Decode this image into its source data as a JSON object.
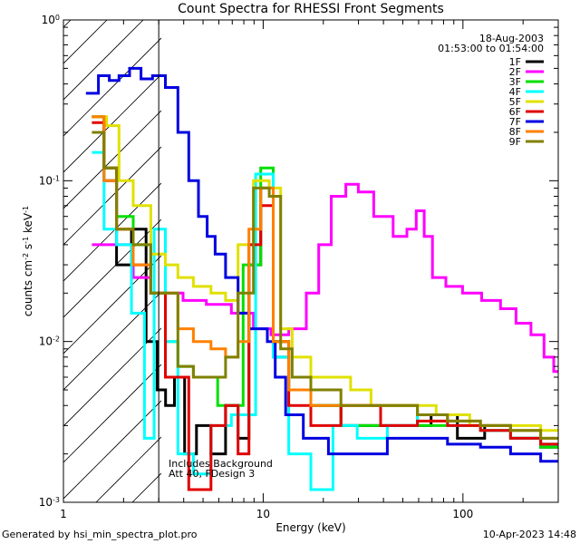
{
  "chart_data": {
    "type": "line",
    "title": "Count Spectra for RHESSI Front Segments",
    "xlabel": "Energy (keV)",
    "ylabel_parts": [
      "counts cm",
      "-2",
      " s",
      "-1",
      " keV",
      "-1"
    ],
    "xscale": "log",
    "yscale": "log",
    "xlim": [
      1,
      300
    ],
    "ylim": [
      0.001,
      1
    ],
    "x_ticks": [
      {
        "value": 1,
        "label": "1"
      },
      {
        "value": 10,
        "label": "10"
      },
      {
        "value": 100,
        "label": "100"
      }
    ],
    "y_ticks": [
      {
        "value": 0.001,
        "mant": "10",
        "exp": "-3"
      },
      {
        "value": 0.01,
        "mant": "10",
        "exp": "-2"
      },
      {
        "value": 0.1,
        "mant": "10",
        "exp": "-1"
      },
      {
        "value": 1,
        "mant": "10",
        "exp": "0"
      }
    ],
    "date": "18-Aug-2003",
    "time_range": "01:53:00 to 01:54:00",
    "legend_position": "top-right",
    "excluded_region_below_keV": 3,
    "notes": [
      "Includes Background",
      "Att 40, FDesign 3"
    ],
    "series": [
      {
        "name": "1F",
        "color": "#000000",
        "points": [
          [
            1.5,
            0.25
          ],
          [
            1.7,
            0.1
          ],
          [
            2.0,
            0.03
          ],
          [
            2.4,
            0.05
          ],
          [
            2.8,
            0.01
          ],
          [
            3.1,
            0.005
          ],
          [
            3.4,
            0.004
          ],
          [
            3.8,
            0.006
          ],
          [
            4.3,
            0.002
          ],
          [
            5.0,
            0.003
          ],
          [
            6.0,
            0.002
          ],
          [
            7.0,
            0.004
          ],
          [
            8.0,
            0.0025
          ],
          [
            9.0,
            0.03
          ],
          [
            10.5,
            0.09
          ],
          [
            12,
            0.008
          ],
          [
            15,
            0.005
          ],
          [
            20,
            0.004
          ],
          [
            30,
            0.003
          ],
          [
            45,
            0.003
          ],
          [
            60,
            0.003
          ],
          [
            80,
            0.0035
          ],
          [
            110,
            0.0025
          ],
          [
            150,
            0.003
          ],
          [
            200,
            0.0025
          ],
          [
            300,
            0.0022
          ]
        ]
      },
      {
        "name": "2F",
        "color": "#ff00ff",
        "points": [
          [
            1.5,
            0.04
          ],
          [
            2.0,
            0.04
          ],
          [
            2.5,
            0.025
          ],
          [
            3.0,
            0.02
          ],
          [
            3.5,
            0.02
          ],
          [
            4.5,
            0.018
          ],
          [
            6.0,
            0.017
          ],
          [
            8.0,
            0.015
          ],
          [
            10,
            0.012
          ],
          [
            12,
            0.011
          ],
          [
            15,
            0.012
          ],
          [
            18,
            0.02
          ],
          [
            20,
            0.04
          ],
          [
            24,
            0.08
          ],
          [
            28,
            0.095
          ],
          [
            32,
            0.085
          ],
          [
            40,
            0.06
          ],
          [
            50,
            0.045
          ],
          [
            55,
            0.05
          ],
          [
            62,
            0.065
          ],
          [
            66,
            0.045
          ],
          [
            75,
            0.025
          ],
          [
            90,
            0.022
          ],
          [
            110,
            0.02
          ],
          [
            140,
            0.018
          ],
          [
            170,
            0.016
          ],
          [
            200,
            0.013
          ],
          [
            240,
            0.011
          ],
          [
            270,
            0.008
          ],
          [
            300,
            0.0065
          ]
        ]
      },
      {
        "name": "3F",
        "color": "#00e000",
        "points": [
          [
            1.5,
            0.25
          ],
          [
            1.7,
            0.12
          ],
          [
            2.0,
            0.06
          ],
          [
            2.5,
            0.04
          ],
          [
            3.0,
            0.02
          ],
          [
            3.5,
            0.01
          ],
          [
            4.0,
            0.007
          ],
          [
            5.0,
            0.006
          ],
          [
            7.0,
            0.004
          ],
          [
            9.0,
            0.03
          ],
          [
            10.5,
            0.12
          ],
          [
            12,
            0.01
          ],
          [
            15,
            0.005
          ],
          [
            20,
            0.004
          ],
          [
            30,
            0.003
          ],
          [
            50,
            0.004
          ],
          [
            70,
            0.003
          ],
          [
            100,
            0.003
          ],
          [
            150,
            0.0028
          ],
          [
            200,
            0.0025
          ],
          [
            300,
            0.0022
          ]
        ]
      },
      {
        "name": "4F",
        "color": "#00ffff",
        "points": [
          [
            1.5,
            0.15
          ],
          [
            1.7,
            0.05
          ],
          [
            2.0,
            0.04
          ],
          [
            2.4,
            0.015
          ],
          [
            2.7,
            0.0025
          ],
          [
            3.0,
            0.05
          ],
          [
            3.5,
            0.01
          ],
          [
            4.0,
            0.002
          ],
          [
            5.0,
            0.0015
          ],
          [
            6.0,
            0.003
          ],
          [
            8.0,
            0.0035
          ],
          [
            10.5,
            0.11
          ],
          [
            12,
            0.008
          ],
          [
            15,
            0.002
          ],
          [
            20,
            0.0012
          ],
          [
            25,
            0.003
          ],
          [
            35,
            0.0025
          ],
          [
            50,
            0.003
          ],
          [
            70,
            0.0035
          ],
          [
            100,
            0.003
          ],
          [
            150,
            0.0028
          ],
          [
            200,
            0.0025
          ],
          [
            300,
            0.0023
          ]
        ]
      },
      {
        "name": "5F",
        "color": "#e0e000",
        "points": [
          [
            1.5,
            0.25
          ],
          [
            1.8,
            0.22
          ],
          [
            2.0,
            0.1
          ],
          [
            2.5,
            0.07
          ],
          [
            3.0,
            0.035
          ],
          [
            3.5,
            0.03
          ],
          [
            4.0,
            0.025
          ],
          [
            5.0,
            0.022
          ],
          [
            6.0,
            0.02
          ],
          [
            7.0,
            0.018
          ],
          [
            8.0,
            0.04
          ],
          [
            10,
            0.1
          ],
          [
            11.5,
            0.09
          ],
          [
            13,
            0.012
          ],
          [
            15,
            0.008
          ],
          [
            20,
            0.006
          ],
          [
            25,
            0.006
          ],
          [
            30,
            0.005
          ],
          [
            40,
            0.004
          ],
          [
            60,
            0.004
          ],
          [
            90,
            0.0035
          ],
          [
            130,
            0.003
          ],
          [
            200,
            0.003
          ],
          [
            300,
            0.0028
          ]
        ]
      },
      {
        "name": "6F",
        "color": "#e00000",
        "points": [
          [
            1.5,
            0.23
          ],
          [
            1.7,
            0.12
          ],
          [
            2.0,
            0.05
          ],
          [
            2.5,
            0.03
          ],
          [
            3.0,
            0.02
          ],
          [
            3.5,
            0.006
          ],
          [
            4.0,
            0.006
          ],
          [
            4.5,
            0.0012
          ],
          [
            5.0,
            0.0012
          ],
          [
            6.0,
            0.003
          ],
          [
            7.0,
            0.004
          ],
          [
            8.0,
            0.002
          ],
          [
            9.0,
            0.04
          ],
          [
            10.5,
            0.07
          ],
          [
            12,
            0.01
          ],
          [
            15,
            0.004
          ],
          [
            20,
            0.003
          ],
          [
            30,
            0.004
          ],
          [
            50,
            0.003
          ],
          [
            70,
            0.0032
          ],
          [
            100,
            0.003
          ],
          [
            150,
            0.0028
          ],
          [
            200,
            0.0025
          ],
          [
            300,
            0.0023
          ]
        ]
      },
      {
        "name": "7F",
        "color": "#0000e0",
        "points": [
          [
            1.4,
            0.35
          ],
          [
            1.6,
            0.45
          ],
          [
            1.8,
            0.42
          ],
          [
            2.0,
            0.45
          ],
          [
            2.3,
            0.5
          ],
          [
            2.6,
            0.43
          ],
          [
            3.0,
            0.45
          ],
          [
            3.5,
            0.38
          ],
          [
            4.0,
            0.2
          ],
          [
            4.5,
            0.1
          ],
          [
            5.0,
            0.06
          ],
          [
            5.5,
            0.045
          ],
          [
            6.0,
            0.035
          ],
          [
            7.0,
            0.025
          ],
          [
            8.0,
            0.015
          ],
          [
            9.0,
            0.012
          ],
          [
            10,
            0.012
          ],
          [
            11,
            0.01
          ],
          [
            12,
            0.006
          ],
          [
            14,
            0.0035
          ],
          [
            18,
            0.0025
          ],
          [
            25,
            0.002
          ],
          [
            35,
            0.002
          ],
          [
            50,
            0.0025
          ],
          [
            70,
            0.0025
          ],
          [
            100,
            0.0023
          ],
          [
            150,
            0.0022
          ],
          [
            200,
            0.002
          ],
          [
            300,
            0.0018
          ]
        ]
      },
      {
        "name": "8F",
        "color": "#ff8000",
        "points": [
          [
            1.5,
            0.25
          ],
          [
            1.7,
            0.1
          ],
          [
            2.0,
            0.05
          ],
          [
            2.5,
            0.03
          ],
          [
            3.0,
            0.02
          ],
          [
            3.5,
            0.02
          ],
          [
            4.0,
            0.012
          ],
          [
            5.0,
            0.01
          ],
          [
            6.0,
            0.009
          ],
          [
            7.0,
            0.008
          ],
          [
            8.0,
            0.01
          ],
          [
            9.0,
            0.05
          ],
          [
            10.5,
            0.09
          ],
          [
            12,
            0.01
          ],
          [
            15,
            0.005
          ],
          [
            20,
            0.004
          ],
          [
            30,
            0.004
          ],
          [
            50,
            0.004
          ],
          [
            70,
            0.0035
          ],
          [
            100,
            0.0032
          ],
          [
            150,
            0.003
          ],
          [
            200,
            0.0028
          ],
          [
            300,
            0.0025
          ]
        ]
      },
      {
        "name": "9F",
        "color": "#808000",
        "points": [
          [
            1.5,
            0.2
          ],
          [
            1.7,
            0.12
          ],
          [
            2.0,
            0.05
          ],
          [
            2.5,
            0.04
          ],
          [
            3.0,
            0.02
          ],
          [
            3.5,
            0.02
          ],
          [
            4.0,
            0.007
          ],
          [
            5.0,
            0.006
          ],
          [
            6.0,
            0.006
          ],
          [
            7.0,
            0.008
          ],
          [
            8.0,
            0.02
          ],
          [
            10,
            0.09
          ],
          [
            11.5,
            0.08
          ],
          [
            13,
            0.009
          ],
          [
            15,
            0.006
          ],
          [
            20,
            0.005
          ],
          [
            30,
            0.004
          ],
          [
            50,
            0.004
          ],
          [
            70,
            0.0035
          ],
          [
            100,
            0.0032
          ],
          [
            150,
            0.003
          ],
          [
            200,
            0.0028
          ],
          [
            300,
            0.0025
          ]
        ]
      }
    ]
  },
  "footer": {
    "generated_by": "Generated by hsi_min_spectra_plot.pro",
    "timestamp": "10-Apr-2023 14:48"
  }
}
